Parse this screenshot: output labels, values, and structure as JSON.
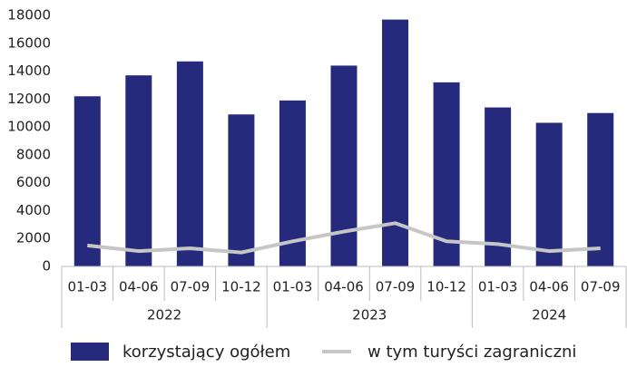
{
  "chart_data": {
    "type": "bar",
    "groups": [
      {
        "label": "2022",
        "categories": [
          "01-03",
          "04-06",
          "07-09",
          "10-12"
        ]
      },
      {
        "label": "2023",
        "categories": [
          "01-03",
          "04-06",
          "07-09",
          "10-12"
        ]
      },
      {
        "label": "2024",
        "categories": [
          "01-03",
          "04-06",
          "07-09"
        ]
      }
    ],
    "series": [
      {
        "name": "korzystający ogółem",
        "type": "bar",
        "color": "#252a7d",
        "values": [
          12200,
          13700,
          14700,
          10900,
          11900,
          14400,
          17700,
          13200,
          11400,
          10300,
          11000
        ]
      },
      {
        "name": "w tym turyści zagraniczni",
        "type": "line",
        "color": "#c6c6c6",
        "values": [
          1500,
          1100,
          1300,
          1000,
          1800,
          2500,
          3100,
          1800,
          1600,
          1100,
          1300
        ]
      }
    ],
    "ylim": [
      0,
      18000
    ],
    "yticks": [
      0,
      2000,
      4000,
      6000,
      8000,
      10000,
      12000,
      14000,
      16000,
      18000
    ],
    "grid": false,
    "legend": "bottom"
  }
}
